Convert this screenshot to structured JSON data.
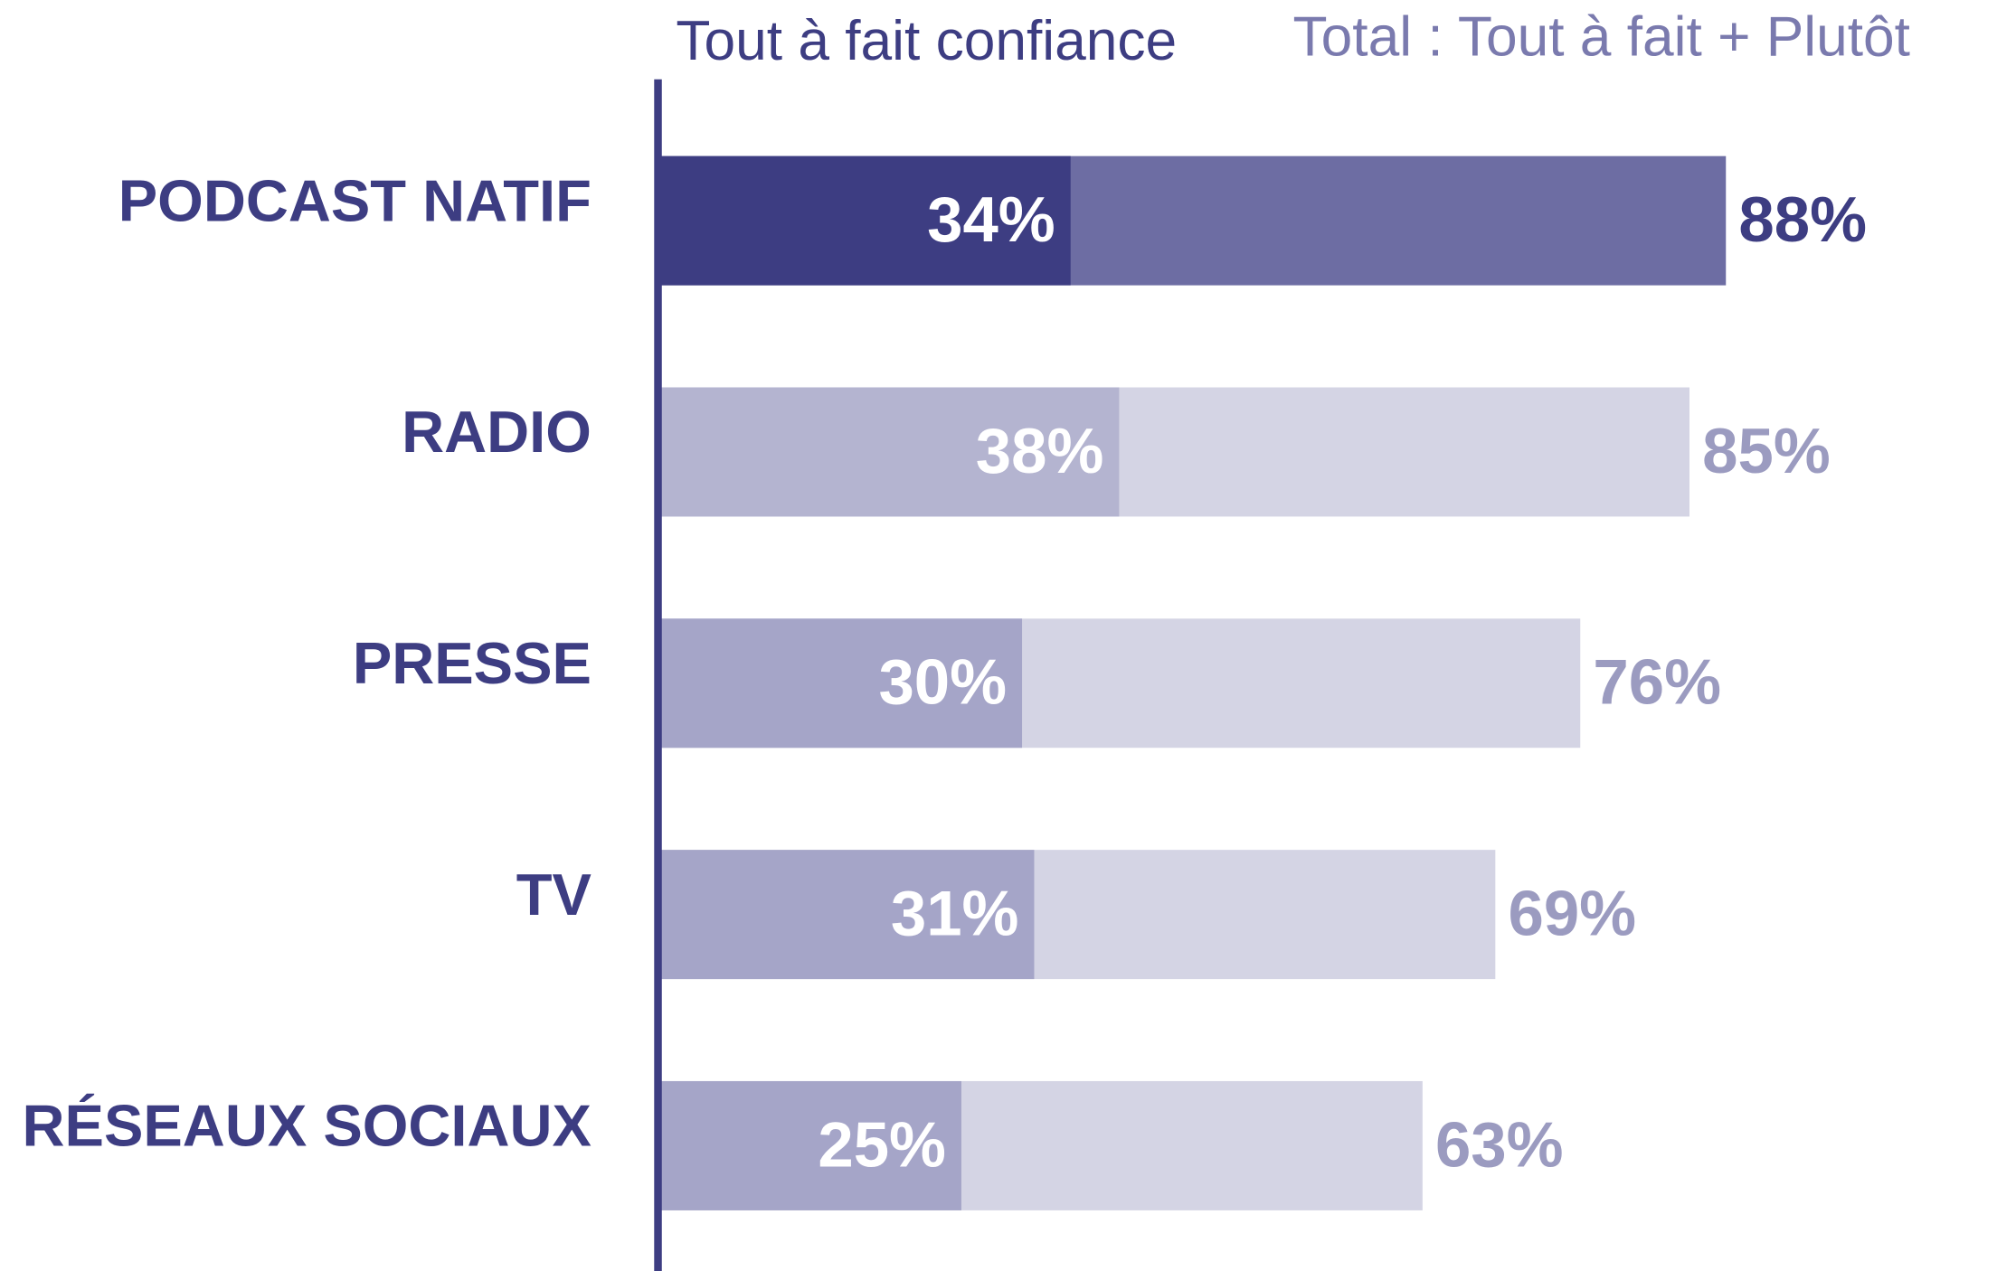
{
  "chart_data": {
    "type": "overlap-bar",
    "orientation": "horizontal",
    "categories": [
      "PODCAST NATIF",
      "RADIO",
      "PRESSE",
      "TV",
      "RÉSEAUX SOCIAUX"
    ],
    "category_color": "#3d3d82",
    "axis_color": "#3d3d82",
    "xlim": [
      0,
      100
    ],
    "series": [
      {
        "name": "Tout à fait confiance",
        "color": "#3d3d82",
        "colors": [
          "#3d3d82",
          "#b4b4d0",
          "#a5a5c8",
          "#a5a5c8",
          "#a5a5c8"
        ],
        "label_colors": [
          "#ffffff",
          "#ffffff",
          "#ffffff",
          "#ffffff",
          "#ffffff"
        ],
        "values": [
          34,
          38,
          30,
          31,
          25
        ],
        "value_labels": [
          "34%",
          "38%",
          "30%",
          "31%",
          "25%"
        ]
      },
      {
        "name": "Total : Tout à fait + Plutôt",
        "color": "#7a7aae",
        "colors": [
          "#6d6da3",
          "#d4d4e4",
          "#d4d4e4",
          "#d4d4e4",
          "#d4d4e4"
        ],
        "label_colors": [
          "#3d3d82",
          "#9b9bc0",
          "#9b9bc0",
          "#9b9bc0",
          "#9b9bc0"
        ],
        "values": [
          88,
          85,
          76,
          69,
          63
        ],
        "value_labels": [
          "88%",
          "85%",
          "76%",
          "69%",
          "63%"
        ]
      }
    ]
  }
}
